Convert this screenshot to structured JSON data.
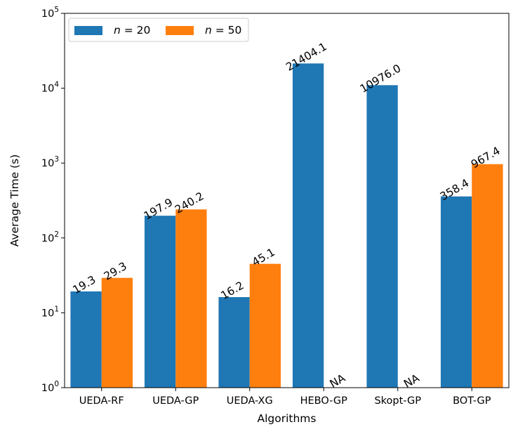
{
  "chart_data": {
    "type": "bar",
    "title": "",
    "xlabel": "Algorithms",
    "ylabel": "Average Time (s)",
    "yscale": "log",
    "ylim": [
      1,
      100000
    ],
    "yticks": [
      {
        "base": "10",
        "exp": "0"
      },
      {
        "base": "10",
        "exp": "1"
      },
      {
        "base": "10",
        "exp": "2"
      },
      {
        "base": "10",
        "exp": "3"
      },
      {
        "base": "10",
        "exp": "4"
      },
      {
        "base": "10",
        "exp": "5"
      }
    ],
    "grid": false,
    "legend_position": "top-left",
    "categories": [
      "UEDA-RF",
      "UEDA-GP",
      "UEDA-XG",
      "HEBO-GP",
      "Skopt-GP",
      "BOT-GP"
    ],
    "series": [
      {
        "name": "n = 20",
        "name_var": "n",
        "name_rest": " = 20",
        "color": "#1f77b4",
        "values": [
          19.3,
          197.9,
          16.2,
          21404.1,
          10976.0,
          358.4
        ],
        "labels": [
          "19.3",
          "197.9",
          "16.2",
          "21404.1",
          "10976.0",
          "358.4"
        ]
      },
      {
        "name": "n = 50",
        "name_var": "n",
        "name_rest": " = 50",
        "color": "#ff7f0e",
        "values": [
          29.3,
          240.2,
          45.1,
          null,
          null,
          967.4
        ],
        "labels": [
          "29.3",
          "240.2",
          "45.1",
          "NA",
          "NA",
          "967.4"
        ]
      }
    ]
  }
}
